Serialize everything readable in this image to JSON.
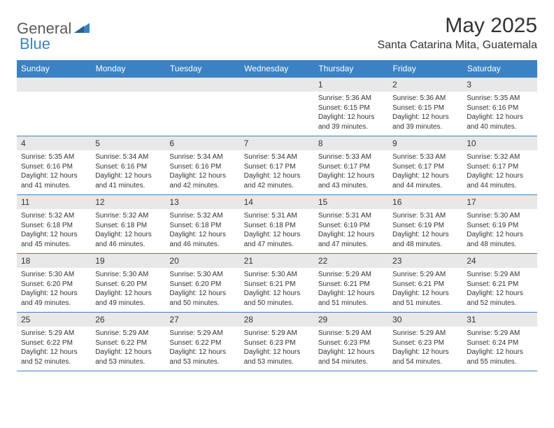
{
  "brand": {
    "general": "General",
    "blue": "Blue"
  },
  "header": {
    "title": "May 2025",
    "location": "Santa Catarina Mita, Guatemala"
  },
  "colors": {
    "accent": "#3b82c4",
    "band": "#e8e8e8",
    "text": "#333333",
    "bg": "#ffffff"
  },
  "dayNames": [
    "Sunday",
    "Monday",
    "Tuesday",
    "Wednesday",
    "Thursday",
    "Friday",
    "Saturday"
  ],
  "weeks": [
    [
      {
        "n": "",
        "lines": []
      },
      {
        "n": "",
        "lines": []
      },
      {
        "n": "",
        "lines": []
      },
      {
        "n": "",
        "lines": []
      },
      {
        "n": "1",
        "lines": [
          "Sunrise: 5:36 AM",
          "Sunset: 6:15 PM",
          "Daylight: 12 hours",
          "and 39 minutes."
        ]
      },
      {
        "n": "2",
        "lines": [
          "Sunrise: 5:36 AM",
          "Sunset: 6:15 PM",
          "Daylight: 12 hours",
          "and 39 minutes."
        ]
      },
      {
        "n": "3",
        "lines": [
          "Sunrise: 5:35 AM",
          "Sunset: 6:16 PM",
          "Daylight: 12 hours",
          "and 40 minutes."
        ]
      }
    ],
    [
      {
        "n": "4",
        "lines": [
          "Sunrise: 5:35 AM",
          "Sunset: 6:16 PM",
          "Daylight: 12 hours",
          "and 41 minutes."
        ]
      },
      {
        "n": "5",
        "lines": [
          "Sunrise: 5:34 AM",
          "Sunset: 6:16 PM",
          "Daylight: 12 hours",
          "and 41 minutes."
        ]
      },
      {
        "n": "6",
        "lines": [
          "Sunrise: 5:34 AM",
          "Sunset: 6:16 PM",
          "Daylight: 12 hours",
          "and 42 minutes."
        ]
      },
      {
        "n": "7",
        "lines": [
          "Sunrise: 5:34 AM",
          "Sunset: 6:17 PM",
          "Daylight: 12 hours",
          "and 42 minutes."
        ]
      },
      {
        "n": "8",
        "lines": [
          "Sunrise: 5:33 AM",
          "Sunset: 6:17 PM",
          "Daylight: 12 hours",
          "and 43 minutes."
        ]
      },
      {
        "n": "9",
        "lines": [
          "Sunrise: 5:33 AM",
          "Sunset: 6:17 PM",
          "Daylight: 12 hours",
          "and 44 minutes."
        ]
      },
      {
        "n": "10",
        "lines": [
          "Sunrise: 5:32 AM",
          "Sunset: 6:17 PM",
          "Daylight: 12 hours",
          "and 44 minutes."
        ]
      }
    ],
    [
      {
        "n": "11",
        "lines": [
          "Sunrise: 5:32 AM",
          "Sunset: 6:18 PM",
          "Daylight: 12 hours",
          "and 45 minutes."
        ]
      },
      {
        "n": "12",
        "lines": [
          "Sunrise: 5:32 AM",
          "Sunset: 6:18 PM",
          "Daylight: 12 hours",
          "and 46 minutes."
        ]
      },
      {
        "n": "13",
        "lines": [
          "Sunrise: 5:32 AM",
          "Sunset: 6:18 PM",
          "Daylight: 12 hours",
          "and 46 minutes."
        ]
      },
      {
        "n": "14",
        "lines": [
          "Sunrise: 5:31 AM",
          "Sunset: 6:18 PM",
          "Daylight: 12 hours",
          "and 47 minutes."
        ]
      },
      {
        "n": "15",
        "lines": [
          "Sunrise: 5:31 AM",
          "Sunset: 6:19 PM",
          "Daylight: 12 hours",
          "and 47 minutes."
        ]
      },
      {
        "n": "16",
        "lines": [
          "Sunrise: 5:31 AM",
          "Sunset: 6:19 PM",
          "Daylight: 12 hours",
          "and 48 minutes."
        ]
      },
      {
        "n": "17",
        "lines": [
          "Sunrise: 5:30 AM",
          "Sunset: 6:19 PM",
          "Daylight: 12 hours",
          "and 48 minutes."
        ]
      }
    ],
    [
      {
        "n": "18",
        "lines": [
          "Sunrise: 5:30 AM",
          "Sunset: 6:20 PM",
          "Daylight: 12 hours",
          "and 49 minutes."
        ]
      },
      {
        "n": "19",
        "lines": [
          "Sunrise: 5:30 AM",
          "Sunset: 6:20 PM",
          "Daylight: 12 hours",
          "and 49 minutes."
        ]
      },
      {
        "n": "20",
        "lines": [
          "Sunrise: 5:30 AM",
          "Sunset: 6:20 PM",
          "Daylight: 12 hours",
          "and 50 minutes."
        ]
      },
      {
        "n": "21",
        "lines": [
          "Sunrise: 5:30 AM",
          "Sunset: 6:21 PM",
          "Daylight: 12 hours",
          "and 50 minutes."
        ]
      },
      {
        "n": "22",
        "lines": [
          "Sunrise: 5:29 AM",
          "Sunset: 6:21 PM",
          "Daylight: 12 hours",
          "and 51 minutes."
        ]
      },
      {
        "n": "23",
        "lines": [
          "Sunrise: 5:29 AM",
          "Sunset: 6:21 PM",
          "Daylight: 12 hours",
          "and 51 minutes."
        ]
      },
      {
        "n": "24",
        "lines": [
          "Sunrise: 5:29 AM",
          "Sunset: 6:21 PM",
          "Daylight: 12 hours",
          "and 52 minutes."
        ]
      }
    ],
    [
      {
        "n": "25",
        "lines": [
          "Sunrise: 5:29 AM",
          "Sunset: 6:22 PM",
          "Daylight: 12 hours",
          "and 52 minutes."
        ]
      },
      {
        "n": "26",
        "lines": [
          "Sunrise: 5:29 AM",
          "Sunset: 6:22 PM",
          "Daylight: 12 hours",
          "and 53 minutes."
        ]
      },
      {
        "n": "27",
        "lines": [
          "Sunrise: 5:29 AM",
          "Sunset: 6:22 PM",
          "Daylight: 12 hours",
          "and 53 minutes."
        ]
      },
      {
        "n": "28",
        "lines": [
          "Sunrise: 5:29 AM",
          "Sunset: 6:23 PM",
          "Daylight: 12 hours",
          "and 53 minutes."
        ]
      },
      {
        "n": "29",
        "lines": [
          "Sunrise: 5:29 AM",
          "Sunset: 6:23 PM",
          "Daylight: 12 hours",
          "and 54 minutes."
        ]
      },
      {
        "n": "30",
        "lines": [
          "Sunrise: 5:29 AM",
          "Sunset: 6:23 PM",
          "Daylight: 12 hours",
          "and 54 minutes."
        ]
      },
      {
        "n": "31",
        "lines": [
          "Sunrise: 5:29 AM",
          "Sunset: 6:24 PM",
          "Daylight: 12 hours",
          "and 55 minutes."
        ]
      }
    ]
  ]
}
